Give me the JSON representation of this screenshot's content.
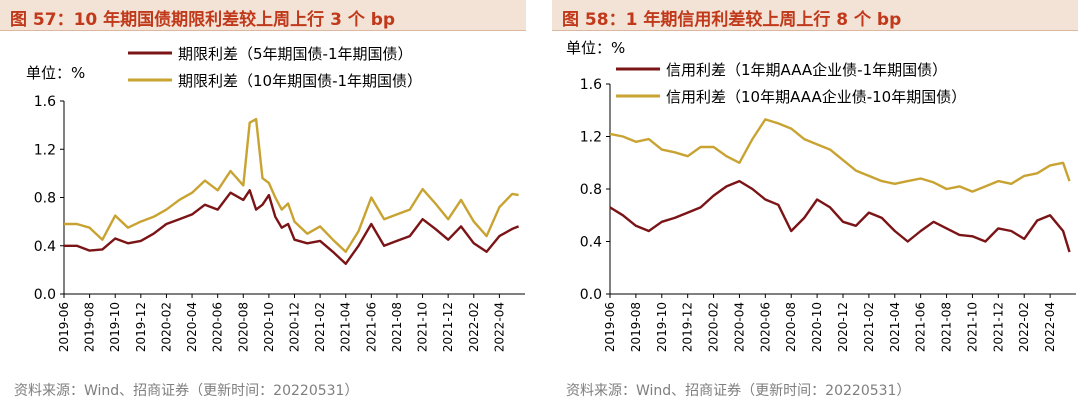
{
  "charts": [
    {
      "title": "图 57：10 年期国债期限利差较上周上行 3 个 bp",
      "source": "资料来源：Wind、招商证券（更新时间：20220531）",
      "unit_label": "单位：%"
    },
    {
      "title": "图 58：1 年期信用利差较上周上行 8 个 bp",
      "source": "资料来源：Wind、招商证券（更新时间：20220531）",
      "unit_label": "单位：%"
    }
  ],
  "colors": {
    "dark_red": "#7b1416",
    "gold": "#c9a332",
    "title_red": "#c0391b",
    "title_bg": "#f3e3d6"
  },
  "chart_data": [
    {
      "type": "line",
      "title": "10 年期国债期限利差较上周上行 3 个 bp",
      "ylabel": "单位：%",
      "ylim": [
        0,
        1.6
      ],
      "yticks": [
        "0.0",
        "0.4",
        "0.8",
        "1.2",
        "1.6"
      ],
      "xlim": [
        "2019-06",
        "2022-05"
      ],
      "xticks": [
        "2019-06",
        "2019-08",
        "2019-10",
        "2019-12",
        "2020-02",
        "2020-04",
        "2020-06",
        "2020-08",
        "2020-10",
        "2020-12",
        "2021-02",
        "2021-04",
        "2021-06",
        "2021-08",
        "2021-10",
        "2021-12",
        "2022-02",
        "2022-04"
      ],
      "legend_position": "top-right",
      "series": [
        {
          "name": "期限利差（5年期国债-1年期国债）",
          "color": "#7b1416",
          "x": [
            0,
            1,
            2,
            3,
            4,
            5,
            6,
            7,
            8,
            9,
            10,
            11,
            12,
            13,
            14,
            14.5,
            15,
            15.5,
            16,
            16.5,
            17,
            17.5,
            18,
            19,
            20,
            21,
            22,
            23,
            24,
            25,
            26,
            27,
            28,
            29,
            30,
            31,
            32,
            33,
            34,
            35,
            35.5
          ],
          "y": [
            0.4,
            0.4,
            0.36,
            0.37,
            0.46,
            0.42,
            0.44,
            0.5,
            0.58,
            0.62,
            0.66,
            0.74,
            0.7,
            0.84,
            0.78,
            0.86,
            0.7,
            0.74,
            0.82,
            0.64,
            0.55,
            0.58,
            0.45,
            0.42,
            0.44,
            0.35,
            0.25,
            0.4,
            0.58,
            0.4,
            0.44,
            0.48,
            0.62,
            0.54,
            0.45,
            0.56,
            0.42,
            0.35,
            0.48,
            0.54,
            0.56
          ]
        },
        {
          "name": "期限利差（10年期国债-1年期国债）",
          "color": "#c9a332",
          "x": [
            0,
            1,
            2,
            3,
            4,
            5,
            6,
            7,
            8,
            9,
            10,
            11,
            12,
            13,
            14,
            14.5,
            15,
            15.5,
            16,
            16.5,
            17,
            17.5,
            18,
            19,
            20,
            21,
            22,
            23,
            24,
            25,
            26,
            27,
            28,
            29,
            30,
            31,
            32,
            33,
            34,
            35,
            35.5
          ],
          "y": [
            0.58,
            0.58,
            0.55,
            0.45,
            0.65,
            0.55,
            0.6,
            0.64,
            0.7,
            0.78,
            0.84,
            0.94,
            0.86,
            1.02,
            0.9,
            1.42,
            1.45,
            0.96,
            0.92,
            0.8,
            0.7,
            0.75,
            0.6,
            0.5,
            0.56,
            0.45,
            0.35,
            0.52,
            0.8,
            0.62,
            0.66,
            0.7,
            0.87,
            0.75,
            0.62,
            0.78,
            0.6,
            0.48,
            0.72,
            0.83,
            0.82
          ]
        }
      ]
    },
    {
      "type": "line",
      "title": "1 年期信用利差较上周上行 8 个 bp",
      "ylabel": "单位：%",
      "ylim": [
        0,
        1.6
      ],
      "yticks": [
        "0.0",
        "0.4",
        "0.8",
        "1.2",
        "1.6"
      ],
      "xlim": [
        "2019-06",
        "2022-05"
      ],
      "xticks": [
        "2019-06",
        "2019-08",
        "2019-10",
        "2019-12",
        "2020-02",
        "2020-04",
        "2020-06",
        "2020-08",
        "2020-10",
        "2020-12",
        "2021-02",
        "2021-04",
        "2021-06",
        "2021-08",
        "2021-10",
        "2021-12",
        "2022-02",
        "2022-04"
      ],
      "legend_position": "top-right",
      "series": [
        {
          "name": "信用利差（1年期AAA企业债-1年期国债）",
          "color": "#7b1416",
          "x": [
            0,
            1,
            2,
            3,
            4,
            5,
            6,
            7,
            8,
            9,
            10,
            11,
            12,
            13,
            14,
            15,
            16,
            17,
            18,
            19,
            20,
            21,
            22,
            23,
            24,
            25,
            26,
            27,
            28,
            29,
            30,
            31,
            32,
            33,
            34,
            35,
            35.5
          ],
          "y": [
            0.66,
            0.6,
            0.52,
            0.48,
            0.55,
            0.58,
            0.62,
            0.66,
            0.75,
            0.82,
            0.86,
            0.8,
            0.72,
            0.68,
            0.48,
            0.58,
            0.72,
            0.66,
            0.55,
            0.52,
            0.62,
            0.58,
            0.48,
            0.4,
            0.48,
            0.55,
            0.5,
            0.45,
            0.44,
            0.4,
            0.5,
            0.48,
            0.42,
            0.56,
            0.6,
            0.48,
            0.32
          ]
        },
        {
          "name": "信用利差（10年期AAA企业债-10年期国债）",
          "color": "#c9a332",
          "x": [
            0,
            1,
            2,
            3,
            4,
            5,
            6,
            7,
            8,
            9,
            10,
            11,
            12,
            13,
            14,
            15,
            16,
            17,
            18,
            19,
            20,
            21,
            22,
            23,
            24,
            25,
            26,
            27,
            28,
            29,
            30,
            31,
            32,
            33,
            34,
            35,
            35.5
          ],
          "y": [
            1.22,
            1.2,
            1.16,
            1.18,
            1.1,
            1.08,
            1.05,
            1.12,
            1.12,
            1.05,
            1.0,
            1.18,
            1.33,
            1.3,
            1.26,
            1.18,
            1.14,
            1.1,
            1.02,
            0.94,
            0.9,
            0.86,
            0.84,
            0.86,
            0.88,
            0.85,
            0.8,
            0.82,
            0.78,
            0.82,
            0.86,
            0.84,
            0.9,
            0.92,
            0.98,
            1.0,
            0.86
          ]
        }
      ]
    }
  ]
}
